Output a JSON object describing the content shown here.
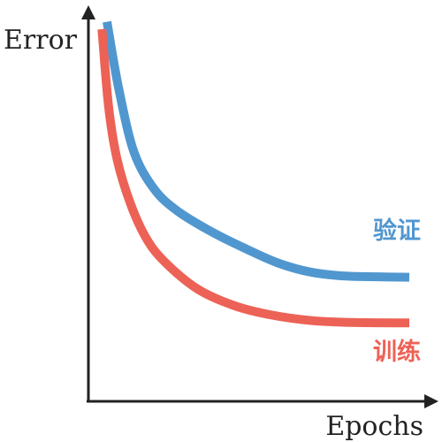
{
  "chart_data": {
    "type": "line",
    "title": "",
    "xlabel": "Epochs",
    "ylabel": "Error",
    "grid": false,
    "xlim": [
      0,
      10
    ],
    "ylim": [
      0,
      10
    ],
    "series": [
      {
        "name": "验证",
        "color": "#5197CF",
        "points": [
          [
            0.5,
            10.2
          ],
          [
            0.85,
            8.4
          ],
          [
            1.3,
            6.7
          ],
          [
            1.9,
            5.7
          ],
          [
            2.6,
            5.1
          ],
          [
            3.6,
            4.55
          ],
          [
            4.6,
            4.1
          ],
          [
            5.6,
            3.7
          ],
          [
            6.6,
            3.45
          ],
          [
            7.6,
            3.35
          ],
          [
            8.6,
            3.33
          ],
          [
            9.5,
            3.32
          ]
        ]
      },
      {
        "name": "训练",
        "color": "#ED6256",
        "points": [
          [
            0.35,
            10.0
          ],
          [
            0.55,
            7.9
          ],
          [
            0.8,
            6.5
          ],
          [
            1.2,
            5.3
          ],
          [
            1.65,
            4.4
          ],
          [
            2.2,
            3.75
          ],
          [
            3.2,
            3.0
          ],
          [
            4.3,
            2.55
          ],
          [
            5.4,
            2.3
          ],
          [
            6.6,
            2.15
          ],
          [
            7.8,
            2.1
          ],
          [
            9.0,
            2.09
          ],
          [
            9.5,
            2.09
          ]
        ]
      }
    ]
  }
}
